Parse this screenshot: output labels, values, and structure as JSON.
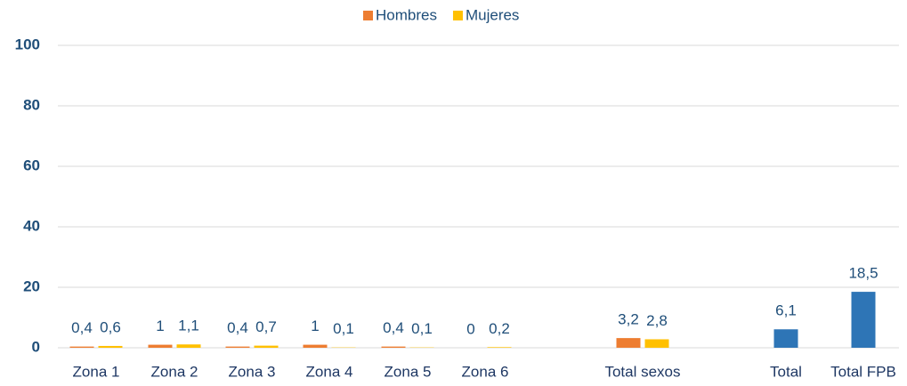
{
  "chart_data": {
    "type": "bar",
    "categories": [
      "Zona 1",
      "Zona 2",
      "Zona 3",
      "Zona 4",
      "Zona 5",
      "Zona 6",
      "Total sexos",
      "Total",
      "Total FPB"
    ],
    "series": [
      {
        "name": "Hombres",
        "color": "#ed7d31",
        "values": [
          0.4,
          1,
          0.4,
          1,
          0.4,
          0,
          3.2,
          null,
          null
        ],
        "value_labels": [
          "0,4",
          "1",
          "0,4",
          "1",
          "0,4",
          "0",
          "3,2",
          null,
          null
        ]
      },
      {
        "name": "Mujeres",
        "color": "#ffc000",
        "values": [
          0.6,
          1.1,
          0.7,
          0.1,
          0.1,
          0.2,
          2.8,
          null,
          null
        ],
        "value_labels": [
          "0,6",
          "1,1",
          "0,7",
          "0,1",
          "0,1",
          "0,2",
          "2,8",
          null,
          null
        ]
      },
      {
        "color": "#2e75b6",
        "values": [
          null,
          null,
          null,
          null,
          null,
          null,
          null,
          6.1,
          18.5
        ],
        "value_labels": [
          null,
          null,
          null,
          null,
          null,
          null,
          null,
          "6,1",
          "18,5"
        ]
      }
    ],
    "ylim": [
      0,
      100
    ],
    "yticks": [
      0,
      20,
      40,
      60,
      80,
      100
    ],
    "grid": true
  }
}
